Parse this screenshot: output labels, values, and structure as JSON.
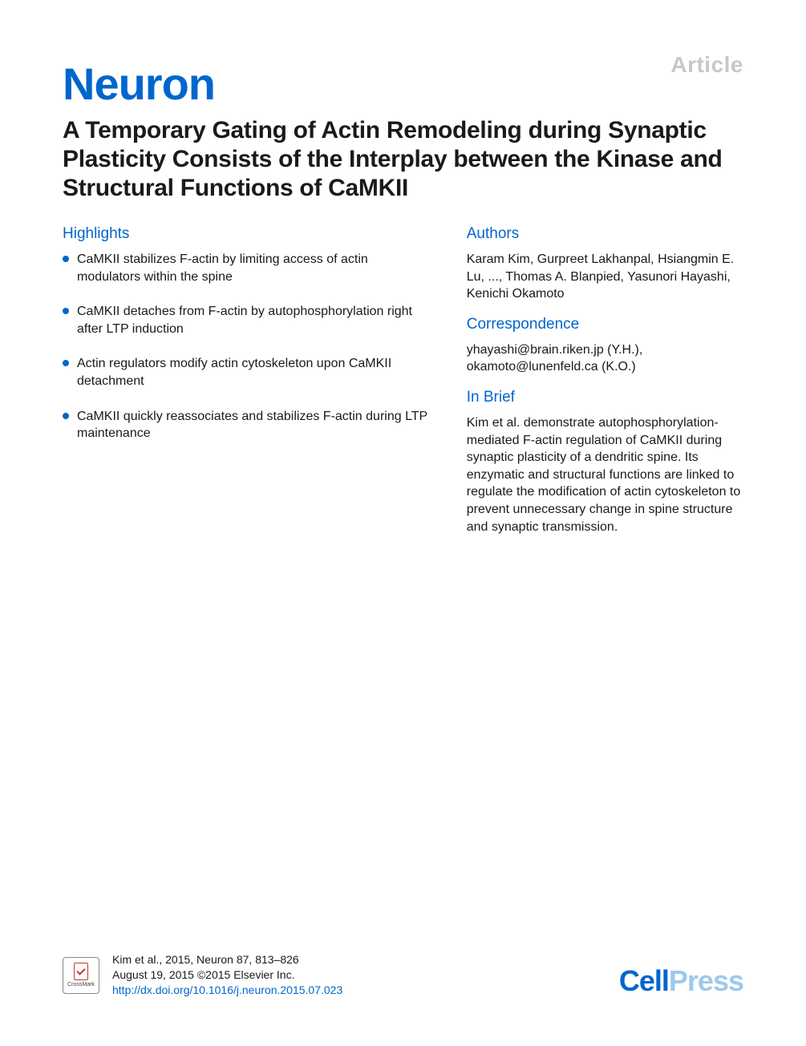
{
  "labels": {
    "article": "Article",
    "highlights": "Highlights",
    "authors": "Authors",
    "correspondence": "Correspondence",
    "in_brief": "In Brief"
  },
  "journal": "Neuron",
  "title": "A Temporary Gating of Actin Remodeling during Synaptic Plasticity Consists of the Interplay between the Kinase and Structural Functions of CaMKII",
  "highlights": [
    "CaMKII stabilizes F-actin by limiting access of actin modulators within the spine",
    "CaMKII detaches from F-actin by autophosphorylation right after LTP induction",
    "Actin regulators modify actin cytoskeleton upon CaMKII detachment",
    "CaMKII quickly reassociates and stabilizes F-actin during LTP maintenance"
  ],
  "authors_text": "Karam Kim, Gurpreet Lakhanpal, Hsiangmin E. Lu, ..., Thomas A. Blanpied, Yasunori Hayashi, Kenichi Okamoto",
  "correspondence_text": "yhayashi@brain.riken.jp (Y.H.), okamoto@lunenfeld.ca (K.O.)",
  "in_brief_text": "Kim et al. demonstrate autophosphorylation-mediated F-actin regulation of CaMKII during synaptic plasticity of a dendritic spine. Its enzymatic and structural functions are linked to regulate the modification of actin cytoskeleton to prevent unnecessary change in spine structure and synaptic transmission.",
  "citation": {
    "line1": "Kim et al., 2015, Neuron 87, 813–826",
    "line2": "August 19, 2015 ©2015 Elsevier Inc.",
    "doi": "http://dx.doi.org/10.1016/j.neuron.2015.07.023"
  },
  "crossmark_label": "CrossMark",
  "publisher": {
    "part1": "Cell",
    "part2": "Press"
  },
  "colors": {
    "brand_blue": "#0066cc",
    "light_blue": "#9ec9ea",
    "gray_label": "#c8c8c8",
    "text": "#1a1a1a",
    "background": "#ffffff"
  },
  "typography": {
    "journal_fontsize": 56,
    "title_fontsize": 30,
    "section_fontsize": 19,
    "body_fontsize": 16,
    "citation_fontsize": 14
  }
}
